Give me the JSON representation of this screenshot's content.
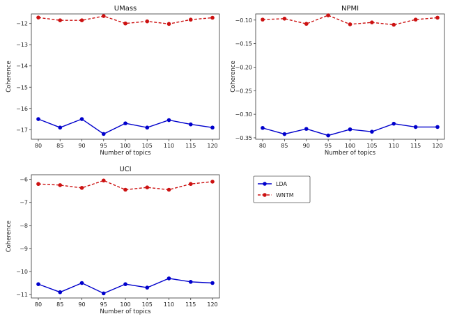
{
  "chart_data": [
    {
      "type": "line",
      "title": "UMass",
      "xlabel": "Number of topics",
      "ylabel": "Coherence",
      "x": [
        80,
        85,
        90,
        95,
        100,
        105,
        110,
        115,
        120
      ],
      "xticks": [
        "80",
        "85",
        "90",
        "95",
        "100",
        "105",
        "110",
        "115",
        "120"
      ],
      "ylim": [
        -17.45,
        -11.55
      ],
      "yticks": [
        -12,
        -13,
        -14,
        -15,
        -16,
        -17
      ],
      "ytick_labels": [
        "−12",
        "−13",
        "−14",
        "−15",
        "−16",
        "−17"
      ],
      "series": [
        {
          "name": "LDA",
          "color": "#0000cc",
          "style": "solid",
          "values": [
            -16.5,
            -16.9,
            -16.5,
            -17.2,
            -16.7,
            -16.9,
            -16.55,
            -16.75,
            -16.9
          ]
        },
        {
          "name": "WNTM",
          "color": "#cc1111",
          "style": "dashed",
          "values": [
            -11.72,
            -11.85,
            -11.85,
            -11.65,
            -12.0,
            -11.9,
            -12.02,
            -11.82,
            -11.73
          ]
        }
      ]
    },
    {
      "type": "line",
      "title": "NPMI",
      "xlabel": "Number of topics",
      "ylabel": "Coherence",
      "x": [
        80,
        85,
        90,
        95,
        100,
        105,
        110,
        115,
        120
      ],
      "xticks": [
        "80",
        "85",
        "90",
        "95",
        "100",
        "105",
        "110",
        "115",
        "120"
      ],
      "ylim": [
        -0.353,
        -0.087
      ],
      "yticks": [
        -0.1,
        -0.15,
        -0.2,
        -0.25,
        -0.3,
        -0.35
      ],
      "ytick_labels": [
        "−0.10",
        "−0.15",
        "−0.20",
        "−0.25",
        "−0.30",
        "−0.35"
      ],
      "series": [
        {
          "name": "LDA",
          "color": "#0000cc",
          "style": "solid",
          "values": [
            -0.329,
            -0.342,
            -0.331,
            -0.345,
            -0.332,
            -0.337,
            -0.32,
            -0.327,
            -0.327
          ]
        },
        {
          "name": "WNTM",
          "color": "#cc1111",
          "style": "dashed",
          "values": [
            -0.099,
            -0.097,
            -0.108,
            -0.09,
            -0.109,
            -0.105,
            -0.11,
            -0.099,
            -0.095
          ]
        }
      ]
    },
    {
      "type": "line",
      "title": "UCI",
      "xlabel": "Number of topics",
      "ylabel": "Coherence",
      "x": [
        80,
        85,
        90,
        95,
        100,
        105,
        110,
        115,
        120
      ],
      "xticks": [
        "80",
        "85",
        "90",
        "95",
        "100",
        "105",
        "110",
        "115",
        "120"
      ],
      "ylim": [
        -11.15,
        -5.8
      ],
      "yticks": [
        -6,
        -7,
        -8,
        -9,
        -10,
        -11
      ],
      "ytick_labels": [
        "−6",
        "−7",
        "−8",
        "−9",
        "−10",
        "−11"
      ],
      "series": [
        {
          "name": "LDA",
          "color": "#0000cc",
          "style": "solid",
          "values": [
            -10.55,
            -10.9,
            -10.5,
            -10.95,
            -10.55,
            -10.7,
            -10.3,
            -10.45,
            -10.5
          ]
        },
        {
          "name": "WNTM",
          "color": "#cc1111",
          "style": "dashed",
          "values": [
            -6.2,
            -6.25,
            -6.37,
            -6.05,
            -6.45,
            -6.35,
            -6.45,
            -6.2,
            -6.1
          ]
        }
      ]
    }
  ],
  "legend": {
    "entries": [
      {
        "name": "LDA",
        "color": "#0000cc",
        "style": "solid"
      },
      {
        "name": "WNTM",
        "color": "#cc1111",
        "style": "dashed"
      }
    ]
  }
}
